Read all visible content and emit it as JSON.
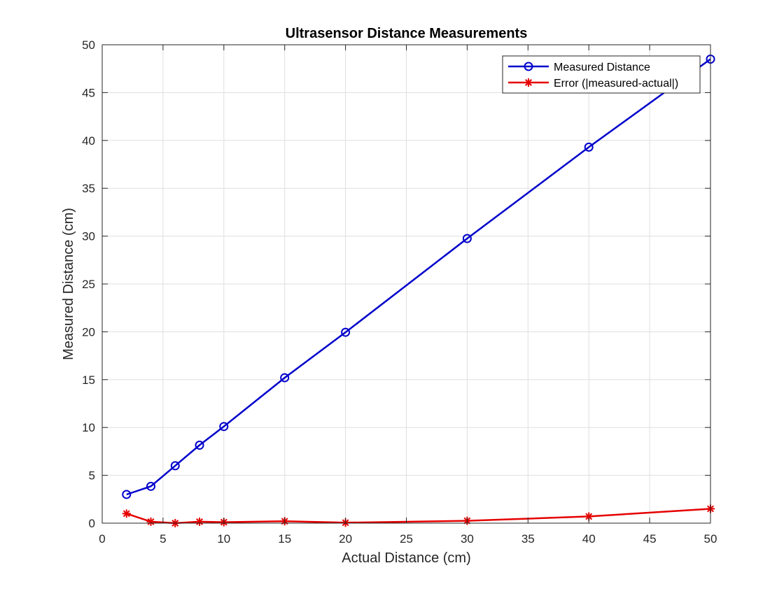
{
  "chart_data": {
    "type": "line",
    "title": "Ultrasensor Distance Measurements",
    "xlabel": "Actual Distance (cm)",
    "ylabel": "Measured Distance (cm)",
    "xlim": [
      0,
      50
    ],
    "ylim": [
      0,
      50
    ],
    "xticks": [
      0,
      5,
      10,
      15,
      20,
      25,
      30,
      35,
      40,
      45,
      50
    ],
    "yticks": [
      0,
      5,
      10,
      15,
      20,
      25,
      30,
      35,
      40,
      45,
      50
    ],
    "grid": true,
    "legend_position": "top-right",
    "x": [
      2,
      4,
      6,
      8,
      10,
      15,
      20,
      30,
      40,
      50
    ],
    "series": [
      {
        "name": "Measured Distance",
        "color": "#0000cc",
        "marker": "circle",
        "values": [
          3.0,
          3.85,
          6.0,
          8.15,
          10.1,
          15.2,
          19.95,
          29.75,
          39.3,
          48.5
        ]
      },
      {
        "name": "Error (|measured-actual|)",
        "color": "#e60000",
        "marker": "asterisk",
        "values": [
          1.0,
          0.15,
          0.0,
          0.15,
          0.1,
          0.2,
          0.05,
          0.25,
          0.7,
          1.5
        ]
      }
    ]
  }
}
